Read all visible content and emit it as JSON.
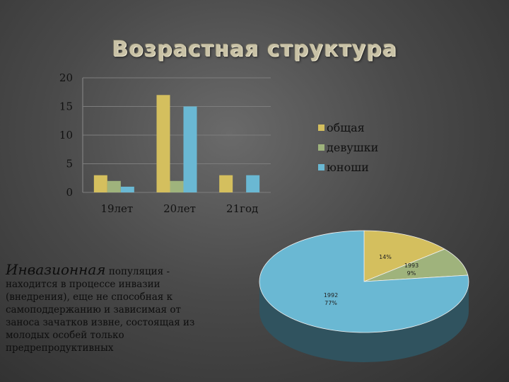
{
  "title": "Возрастная структура",
  "description": {
    "lead": "Инвазионная",
    "rest": " популяция - находится в процессе инвазии (внедрения), еще не способная к самоподдержанию и зависимая от заноса зачатков извне, состоящая из молодых особей только предрепродуктивных"
  },
  "colors": {
    "общая": "#d4bf5e",
    "девушки": "#9fb37c",
    "юноши": "#6ab8d3"
  },
  "chart_data": [
    {
      "type": "bar",
      "categories": [
        "19лет",
        "20лет",
        "21год"
      ],
      "series": [
        {
          "name": "общая",
          "values": [
            3,
            17,
            3
          ]
        },
        {
          "name": "девушки",
          "values": [
            2,
            2,
            0
          ]
        },
        {
          "name": "юноши",
          "values": [
            1,
            15,
            3
          ]
        }
      ],
      "ylim": [
        0,
        20
      ],
      "yticks": [
        "0",
        "5",
        "10",
        "15",
        "20"
      ],
      "grid": true,
      "legend": "right"
    },
    {
      "type": "pie",
      "slices": [
        {
          "label": "",
          "text": "14%",
          "value": 14,
          "color": "#d4bf5e"
        },
        {
          "label": "1993",
          "text": "9%",
          "value": 9,
          "color": "#9fb37c"
        },
        {
          "label": "1992",
          "text": "77%",
          "value": 77,
          "color": "#6ab8d3"
        }
      ]
    }
  ]
}
